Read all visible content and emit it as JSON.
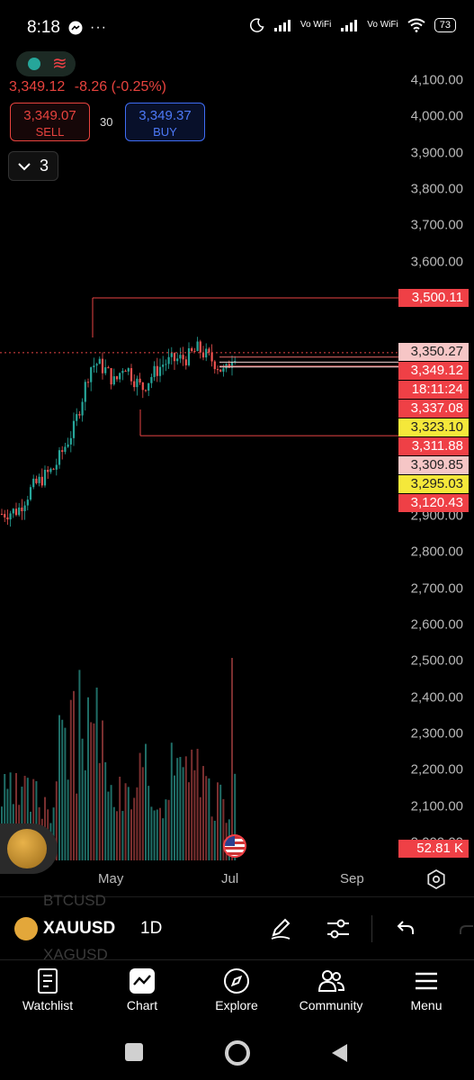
{
  "status_bar": {
    "time": "8:18",
    "network_label": "Vo WiFi",
    "battery": "73"
  },
  "quote": {
    "last": "3,349.12",
    "change": "-8.26",
    "change_pct": "(-0.25%)"
  },
  "trade": {
    "sell_price": "3,349.07",
    "sell_label": "SELL",
    "spread": "30",
    "buy_price": "3,349.37",
    "buy_label": "BUY"
  },
  "collapse": {
    "count": "3"
  },
  "chart_data": {
    "type": "candlestick",
    "y_axis": {
      "min": 2000,
      "max": 4100,
      "ticks": [
        "4,100.00",
        "4,000.00",
        "3,900.00",
        "3,800.00",
        "3,700.00",
        "3,600.00",
        "2,900.00",
        "2,800.00",
        "2,700.00",
        "2,600.00",
        "2,500.00",
        "2,400.00",
        "2,300.00",
        "2,200.00",
        "2,100.00",
        "2,000.00"
      ]
    },
    "x_axis": {
      "ticks": [
        "May",
        "Jul",
        "Sep"
      ]
    },
    "price_labels": [
      {
        "value": 3500.11,
        "text": "3,500.11",
        "bg": "#ef4046",
        "fg": "#ffffff"
      },
      {
        "value": 3350.27,
        "text": "3,350.27",
        "bg": "#f6c6c6",
        "fg": "#222222"
      },
      {
        "value": 3349.12,
        "text": "3,349.12",
        "bg": "#ef4046",
        "fg": "#ffffff"
      },
      {
        "value": 3342.4,
        "text": "18:11:24",
        "bg": "#ef4046",
        "fg": "#ffffff"
      },
      {
        "value": 3337.08,
        "text": "3,337.08",
        "bg": "#ef4046",
        "fg": "#ffffff"
      },
      {
        "value": 3323.1,
        "text": "3,323.10",
        "bg": "#f5e83a",
        "fg": "#222222"
      },
      {
        "value": 3311.88,
        "text": "3,311.88",
        "bg": "#ef4046",
        "fg": "#ffffff"
      },
      {
        "value": 3309.85,
        "text": "3,309.85",
        "bg": "#f6c6c6",
        "fg": "#222222"
      },
      {
        "value": 3295.03,
        "text": "3,295.03",
        "bg": "#f5e83a",
        "fg": "#222222"
      },
      {
        "value": 3120.43,
        "text": "3,120.43",
        "bg": "#ef4046",
        "fg": "#ffffff"
      }
    ],
    "volume_label": "52.81 K",
    "colors": {
      "up": "#26a69a",
      "down": "#ef5350",
      "line": "#e84545"
    }
  },
  "symbol_bar": {
    "symbol": "XAUUSD",
    "timeframe": "1D",
    "above": "BTCUSD",
    "below": "XAGUSD"
  },
  "nav": [
    {
      "label": "Watchlist",
      "icon": "watchlist-icon"
    },
    {
      "label": "Chart",
      "icon": "chart-icon"
    },
    {
      "label": "Explore",
      "icon": "compass-icon"
    },
    {
      "label": "Community",
      "icon": "community-icon"
    },
    {
      "label": "Menu",
      "icon": "menu-icon"
    }
  ]
}
